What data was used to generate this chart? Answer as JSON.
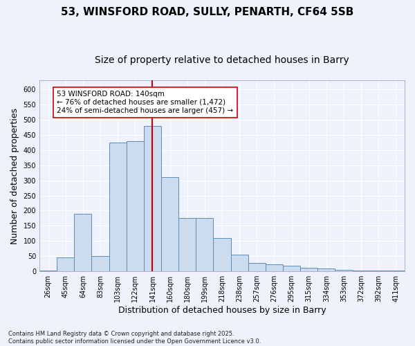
{
  "title_line1": "53, WINSFORD ROAD, SULLY, PENARTH, CF64 5SB",
  "title_line2": "Size of property relative to detached houses in Barry",
  "xlabel": "Distribution of detached houses by size in Barry",
  "ylabel": "Number of detached properties",
  "categories": [
    "26sqm",
    "45sqm",
    "64sqm",
    "83sqm",
    "103sqm",
    "122sqm",
    "141sqm",
    "160sqm",
    "180sqm",
    "199sqm",
    "218sqm",
    "238sqm",
    "257sqm",
    "276sqm",
    "295sqm",
    "315sqm",
    "334sqm",
    "353sqm",
    "372sqm",
    "392sqm",
    "411sqm"
  ],
  "values": [
    3,
    45,
    190,
    50,
    425,
    430,
    480,
    310,
    175,
    175,
    110,
    55,
    28,
    22,
    18,
    12,
    9,
    4,
    3,
    2,
    3
  ],
  "bar_color": "#ccdcee",
  "bar_edge_color": "#5b8db8",
  "vline_x_index": 6,
  "vline_color": "#cc0000",
  "annotation_text": "53 WINSFORD ROAD: 140sqm\n← 76% of detached houses are smaller (1,472)\n24% of semi-detached houses are larger (457) →",
  "annotation_box_facecolor": "#ffffff",
  "annotation_box_edgecolor": "#cc0000",
  "ylim": [
    0,
    630
  ],
  "yticks": [
    0,
    50,
    100,
    150,
    200,
    250,
    300,
    350,
    400,
    450,
    500,
    550,
    600
  ],
  "background_color": "#eef2fc",
  "grid_color": "#ffffff",
  "footnote": "Contains HM Land Registry data © Crown copyright and database right 2025.\nContains public sector information licensed under the Open Government Licence v3.0.",
  "title_fontsize": 11,
  "subtitle_fontsize": 10,
  "tick_fontsize": 7,
  "label_fontsize": 9,
  "annotation_fontsize": 7.5
}
